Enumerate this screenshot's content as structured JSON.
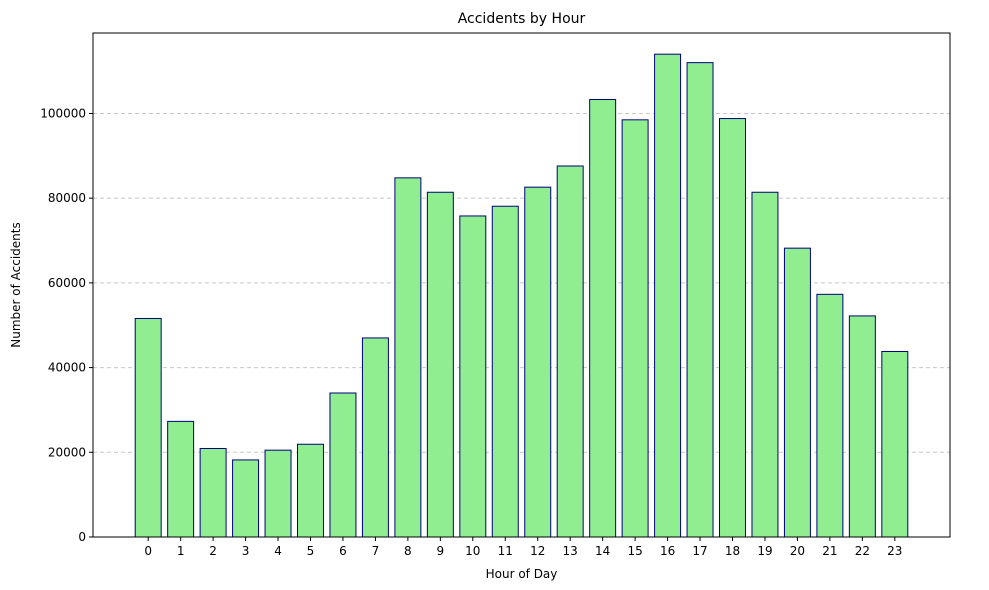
{
  "chart_data": {
    "type": "bar",
    "title": "Accidents by Hour",
    "xlabel": "Hour of Day",
    "ylabel": "Number of Accidents",
    "categories": [
      "0",
      "1",
      "2",
      "3",
      "4",
      "5",
      "6",
      "7",
      "8",
      "9",
      "10",
      "11",
      "12",
      "13",
      "14",
      "15",
      "16",
      "17",
      "18",
      "19",
      "20",
      "21",
      "22",
      "23"
    ],
    "values": [
      51600,
      27300,
      20900,
      18200,
      20500,
      21900,
      34000,
      47000,
      84800,
      81400,
      75800,
      78100,
      82600,
      87600,
      103300,
      98500,
      114000,
      112000,
      98800,
      81400,
      68200,
      57300,
      52200,
      43800
    ],
    "ylim": [
      0,
      119000
    ],
    "yticks": [
      0,
      20000,
      40000,
      60000,
      80000,
      100000
    ],
    "ytick_labels": [
      "0",
      "20000",
      "40000",
      "60000",
      "80000",
      "100000"
    ],
    "grid": "y-dashed",
    "colors": {
      "bar_fill": "#90ee90",
      "bar_edge": "#000080",
      "grid": "#c8c8c8",
      "axis": "#000000"
    }
  }
}
